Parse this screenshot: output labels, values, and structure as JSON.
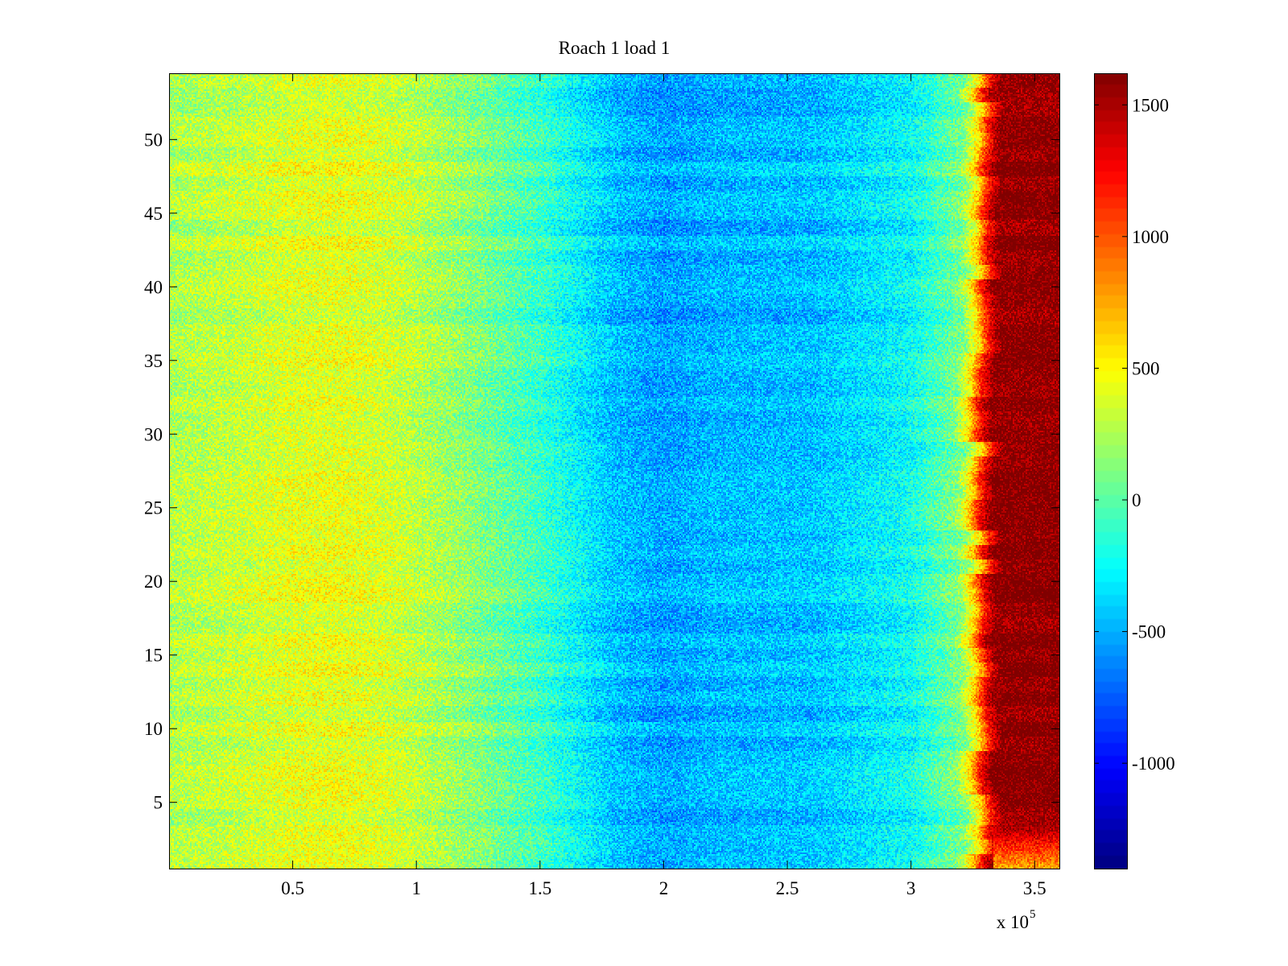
{
  "chart_data": [
    {
      "type": "heatmap",
      "title": "Roach 1 load 1",
      "xlabel": "",
      "ylabel": "",
      "x_multiplier": "x 10",
      "x_exponent": "5",
      "xlim": [
        0,
        3.6
      ],
      "ylim": [
        0.5,
        54.5
      ],
      "x_ticks": [
        0.5,
        1,
        1.5,
        2,
        2.5,
        3,
        3.5
      ],
      "x_tick_labels": [
        "0.5",
        "1",
        "1.5",
        "2",
        "2.5",
        "3",
        "3.5"
      ],
      "y_ticks": [
        5,
        10,
        15,
        20,
        25,
        30,
        35,
        40,
        45,
        50
      ],
      "y_tick_labels": [
        "5",
        "10",
        "15",
        "20",
        "25",
        "30",
        "35",
        "40",
        "45",
        "50"
      ],
      "rows": 54,
      "colormap": "jet",
      "profile_x": [
        0,
        0.3,
        0.5,
        0.7,
        0.9,
        1.2,
        1.5,
        1.8,
        2.0,
        2.2,
        2.6,
        3.0,
        3.2,
        3.26,
        3.3,
        3.35,
        3.6
      ],
      "profile_values": [
        250,
        320,
        400,
        420,
        350,
        150,
        -100,
        -450,
        -550,
        -480,
        -450,
        -250,
        100,
        600,
        1200,
        1600,
        1600
      ],
      "colorbar": {
        "range": [
          -1400,
          1620
        ],
        "ticks": [
          -1000,
          -500,
          0,
          500,
          1000,
          1500
        ],
        "tick_labels": [
          "-1000",
          "-500",
          "0",
          "500",
          "1000",
          "1500"
        ]
      }
    }
  ]
}
